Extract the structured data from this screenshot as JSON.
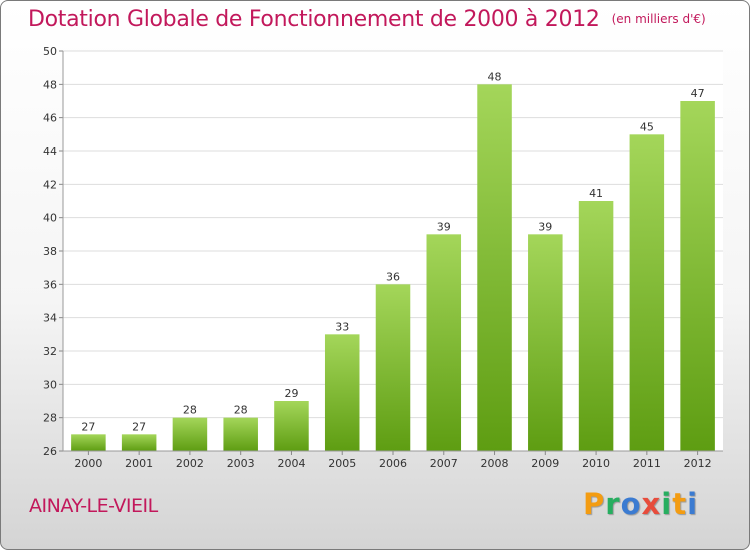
{
  "header": {
    "title": "Dotation Globale de Fonctionnement de 2000 à 2012",
    "subtitle": "(en milliers d'€)"
  },
  "footer": {
    "commune": "AINAY-LE-VIEIL",
    "brand": [
      "P",
      "r",
      "o",
      "x",
      "i",
      "t",
      "i"
    ]
  },
  "colors": {
    "title": "#c2185b",
    "bar_top": "#a4d65a",
    "bar_bottom": "#5e9d12",
    "brand": [
      "#f39c12",
      "#27ae60",
      "#3b7bd1",
      "#e74c3c",
      "#27ae60",
      "#f39c12",
      "#3b7bd1"
    ]
  },
  "chart_data": {
    "type": "bar",
    "title": "Dotation Globale de Fonctionnement de 2000 à 2012",
    "subtitle": "(en milliers d'€)",
    "categories": [
      "2000",
      "2001",
      "2002",
      "2003",
      "2004",
      "2005",
      "2006",
      "2007",
      "2008",
      "2009",
      "2010",
      "2011",
      "2012"
    ],
    "values": [
      27,
      27,
      28,
      28,
      29,
      33,
      36,
      39,
      48,
      39,
      41,
      45,
      47
    ],
    "ylim": [
      26,
      50
    ],
    "yticks": [
      26,
      28,
      30,
      32,
      34,
      36,
      38,
      40,
      42,
      44,
      46,
      48,
      50
    ],
    "grid": true
  }
}
